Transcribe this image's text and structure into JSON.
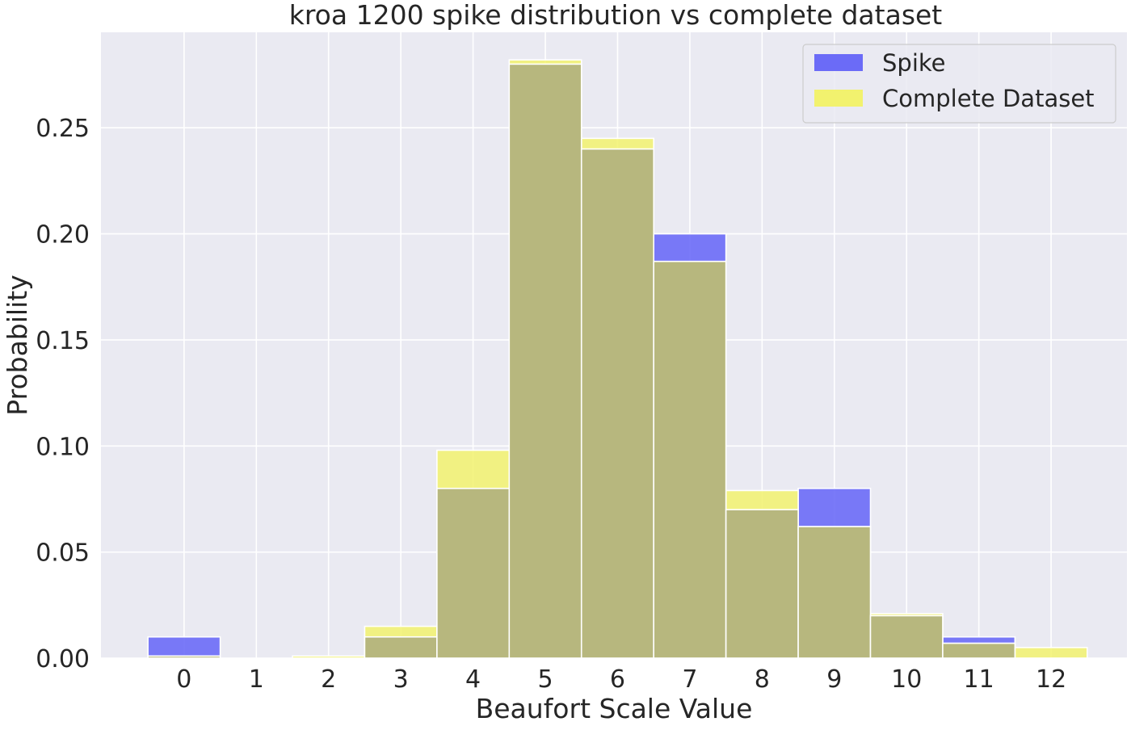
{
  "chart_data": {
    "type": "bar",
    "title": "kroa 1200 spike distribution vs complete dataset",
    "xlabel": "Beaufort Scale Value",
    "ylabel": "Probability",
    "categories": [
      "0",
      "1",
      "2",
      "3",
      "4",
      "5",
      "6",
      "7",
      "8",
      "9",
      "10",
      "11",
      "12"
    ],
    "x": [
      0,
      1,
      2,
      3,
      4,
      5,
      6,
      7,
      8,
      9,
      10,
      11,
      12
    ],
    "series": [
      {
        "name": "Spike",
        "color": "#6b6bf7",
        "values": [
          0.01,
          0.0,
          0.0,
          0.01,
          0.08,
          0.28,
          0.24,
          0.2,
          0.07,
          0.08,
          0.02,
          0.01,
          0.0
        ]
      },
      {
        "name": "Complete Dataset",
        "color": "#f2f26e",
        "values": [
          0.001,
          0.0,
          0.001,
          0.015,
          0.098,
          0.282,
          0.245,
          0.187,
          0.079,
          0.062,
          0.021,
          0.007,
          0.005
        ]
      }
    ],
    "overlap_color": "#b7b77e",
    "background_color": "#eaeaf2",
    "grid": true,
    "legend_position": "top-right",
    "xlim": [
      -1.15,
      13.05
    ],
    "ylim": [
      0,
      0.295
    ],
    "yticks": [
      "0.00",
      "0.05",
      "0.10",
      "0.15",
      "0.20",
      "0.25"
    ]
  }
}
